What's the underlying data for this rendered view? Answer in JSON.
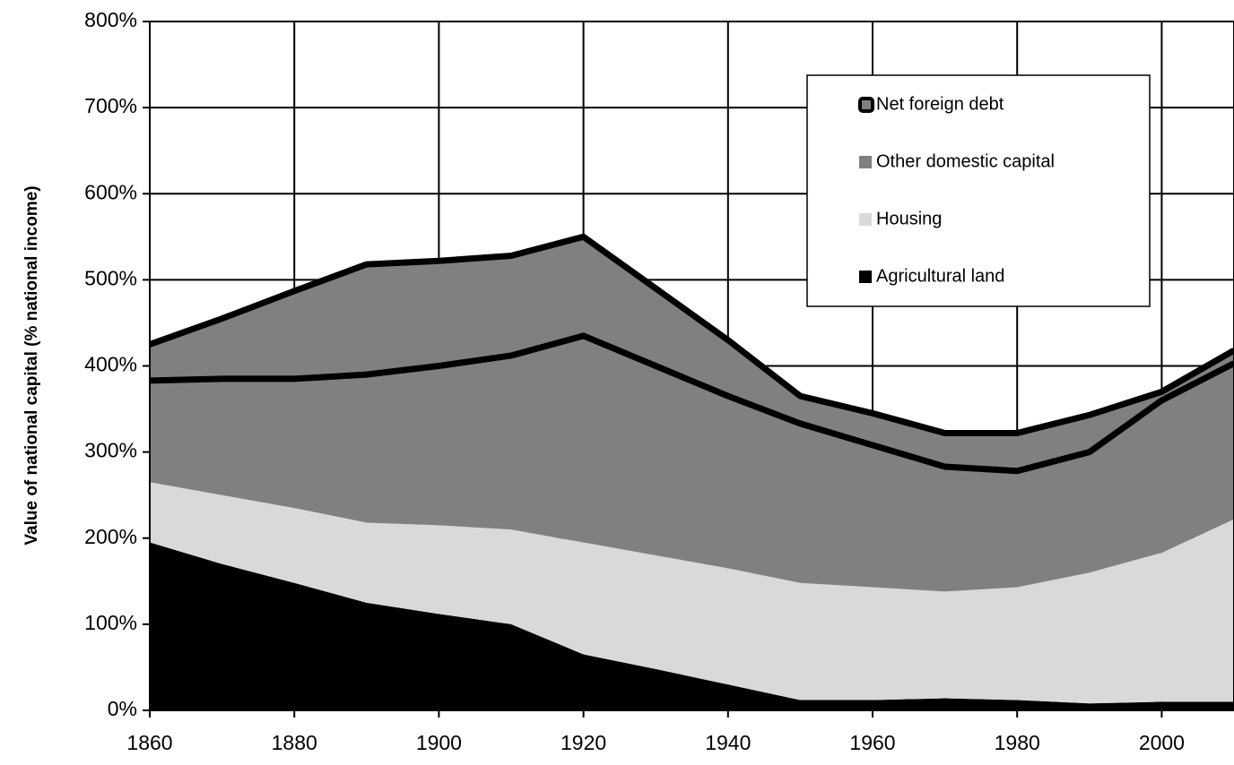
{
  "chart_data": {
    "type": "stacked-area",
    "y_label": "Value of national capital (% national income)",
    "x": [
      1860,
      1870,
      1880,
      1890,
      1900,
      1910,
      1920,
      1930,
      1940,
      1950,
      1960,
      1970,
      1980,
      1990,
      2000,
      2010
    ],
    "series": [
      {
        "name": "Agricultural land",
        "color": "#000000",
        "values": [
          195,
          170,
          148,
          125,
          112,
          100,
          65,
          48,
          30,
          12,
          12,
          14,
          12,
          8,
          10,
          10
        ]
      },
      {
        "name": "Housing",
        "color": "#d9d9d9",
        "values": [
          70,
          80,
          87,
          93,
          103,
          110,
          130,
          132,
          135,
          136,
          131,
          124,
          131,
          152,
          173,
          212
        ]
      },
      {
        "name": "Other domestic capital",
        "color": "#808080",
        "values": [
          118,
          135,
          150,
          172,
          185,
          202,
          240,
          220,
          200,
          185,
          165,
          145,
          135,
          140,
          177,
          181
        ]
      },
      {
        "name": "Net foreign debt",
        "color": "#808080",
        "values": [
          42,
          70,
          102,
          128,
          122,
          116,
          115,
          90,
          65,
          32,
          37,
          39,
          44,
          43,
          10,
          15
        ]
      }
    ],
    "xlim": [
      1860,
      2010
    ],
    "xticks": [
      1860,
      1880,
      1900,
      1920,
      1940,
      1960,
      1980,
      2000
    ],
    "ylim": [
      0,
      800
    ],
    "yticks": [
      {
        "value": 0,
        "label": "0%"
      },
      {
        "value": 100,
        "label": "100%"
      },
      {
        "value": 200,
        "label": "200%"
      },
      {
        "value": 300,
        "label": "300%"
      },
      {
        "value": 400,
        "label": "400%"
      },
      {
        "value": 500,
        "label": "500%"
      },
      {
        "value": 600,
        "label": "600%"
      },
      {
        "value": 700,
        "label": "700%"
      },
      {
        "value": 800,
        "label": "800%"
      }
    ],
    "grid": true
  }
}
